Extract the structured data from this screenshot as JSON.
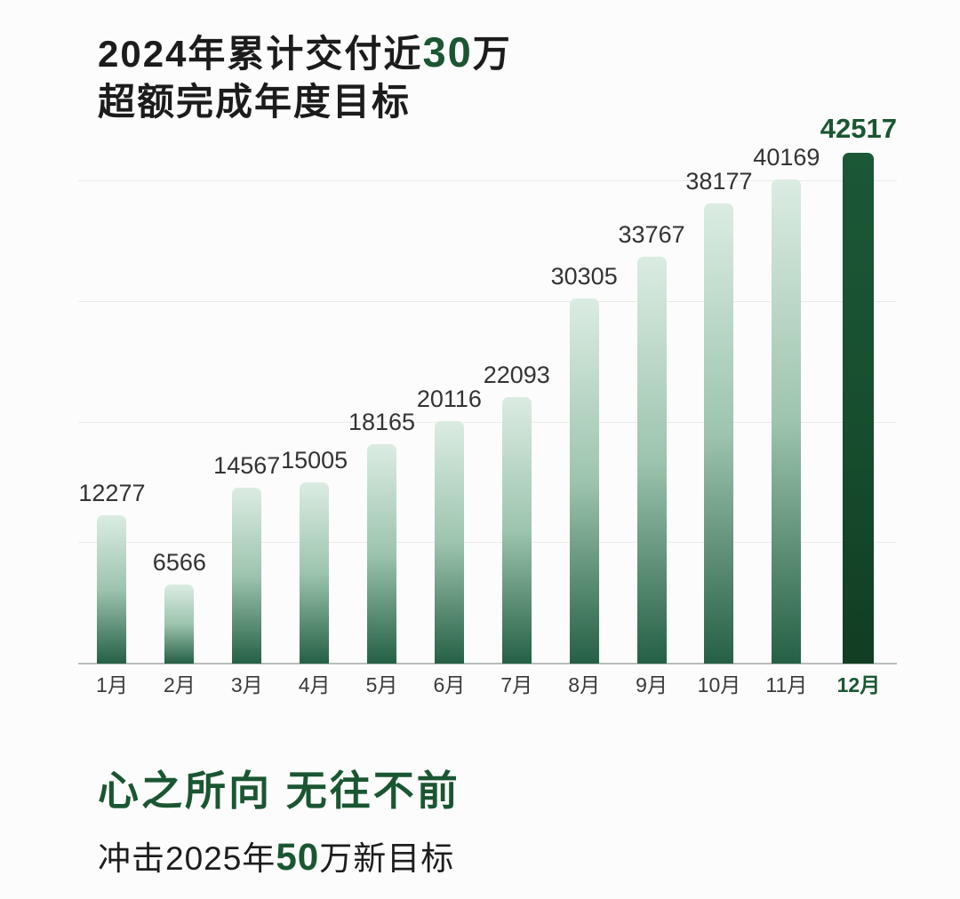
{
  "header": {
    "title_prefix": "2024年累计交付近",
    "title_highlight": "30",
    "title_suffix": "万",
    "subtitle": "超额完成年度目标"
  },
  "chart_data": {
    "type": "bar",
    "title": "2024年累计交付近30万 超额完成年度目标",
    "xlabel": "",
    "ylabel": "",
    "categories": [
      "1月",
      "2月",
      "3月",
      "4月",
      "5月",
      "6月",
      "7月",
      "8月",
      "9月",
      "10月",
      "11月",
      "12月"
    ],
    "values": [
      12277,
      6566,
      14567,
      15005,
      18165,
      20116,
      22093,
      30305,
      33767,
      38177,
      40169,
      42517
    ],
    "value_labels_shown": true,
    "highlight_index": 11,
    "highlight_category": "12月",
    "highlight_value": 42517,
    "ylim": [
      0,
      42517
    ],
    "gridlines": [
      10000,
      20000,
      30000,
      40000
    ],
    "grid": true,
    "legend": false
  },
  "footer": {
    "headline": "心之所向 无往不前",
    "subline_prefix": "冲击2025年",
    "subline_highlight": "50",
    "subline_suffix": "万新目标"
  },
  "colors": {
    "bg": "#fbfcfb",
    "accent_green": "#1a5632",
    "text_dark": "#1c1c1c",
    "value_label": "#333333",
    "bar_top": "#dbece2",
    "bar_mid": "#9dc4ae",
    "bar_bottom": "#256045",
    "bar_highlight": "#174d2e",
    "gridline": "#e9ece9",
    "baseline": "#b7bdb8"
  }
}
